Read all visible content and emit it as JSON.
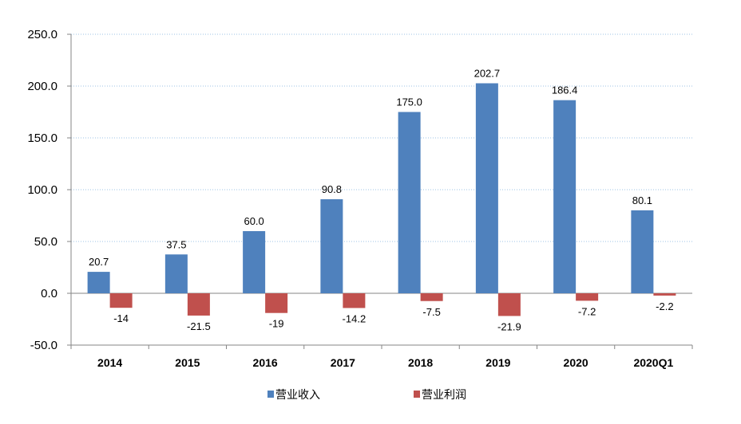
{
  "chart_data": {
    "type": "bar",
    "categories": [
      "2014",
      "2015",
      "2016",
      "2017",
      "2018",
      "2019",
      "2020",
      "2020Q1"
    ],
    "series": [
      {
        "name": "营业收入",
        "values": [
          20.7,
          37.5,
          60.0,
          90.8,
          175.0,
          202.7,
          186.4,
          80.1
        ],
        "labels": [
          "20.7",
          "37.5",
          "60.0",
          "90.8",
          "175.0",
          "202.7",
          "186.4",
          "80.1"
        ],
        "color": "#4F81BD"
      },
      {
        "name": "营业利润",
        "values": [
          -14,
          -21.5,
          -19,
          -14.2,
          -7.5,
          -21.9,
          -7.2,
          -2.2
        ],
        "labels": [
          "-14",
          "-21.5",
          "-19",
          "-14.2",
          "-7.5",
          "-21.9",
          "-7.2",
          "-2.2"
        ],
        "color": "#C0504D"
      }
    ],
    "ylim": [
      -50,
      250
    ],
    "yticks": [
      "-50.0",
      "0.0",
      "50.0",
      "100.0",
      "150.0",
      "200.0",
      "250.0"
    ],
    "ytick_values": [
      -50,
      0,
      50,
      100,
      150,
      200,
      250
    ],
    "grid": true,
    "legend_position": "bottom",
    "title": "",
    "xlabel": "",
    "ylabel": ""
  }
}
